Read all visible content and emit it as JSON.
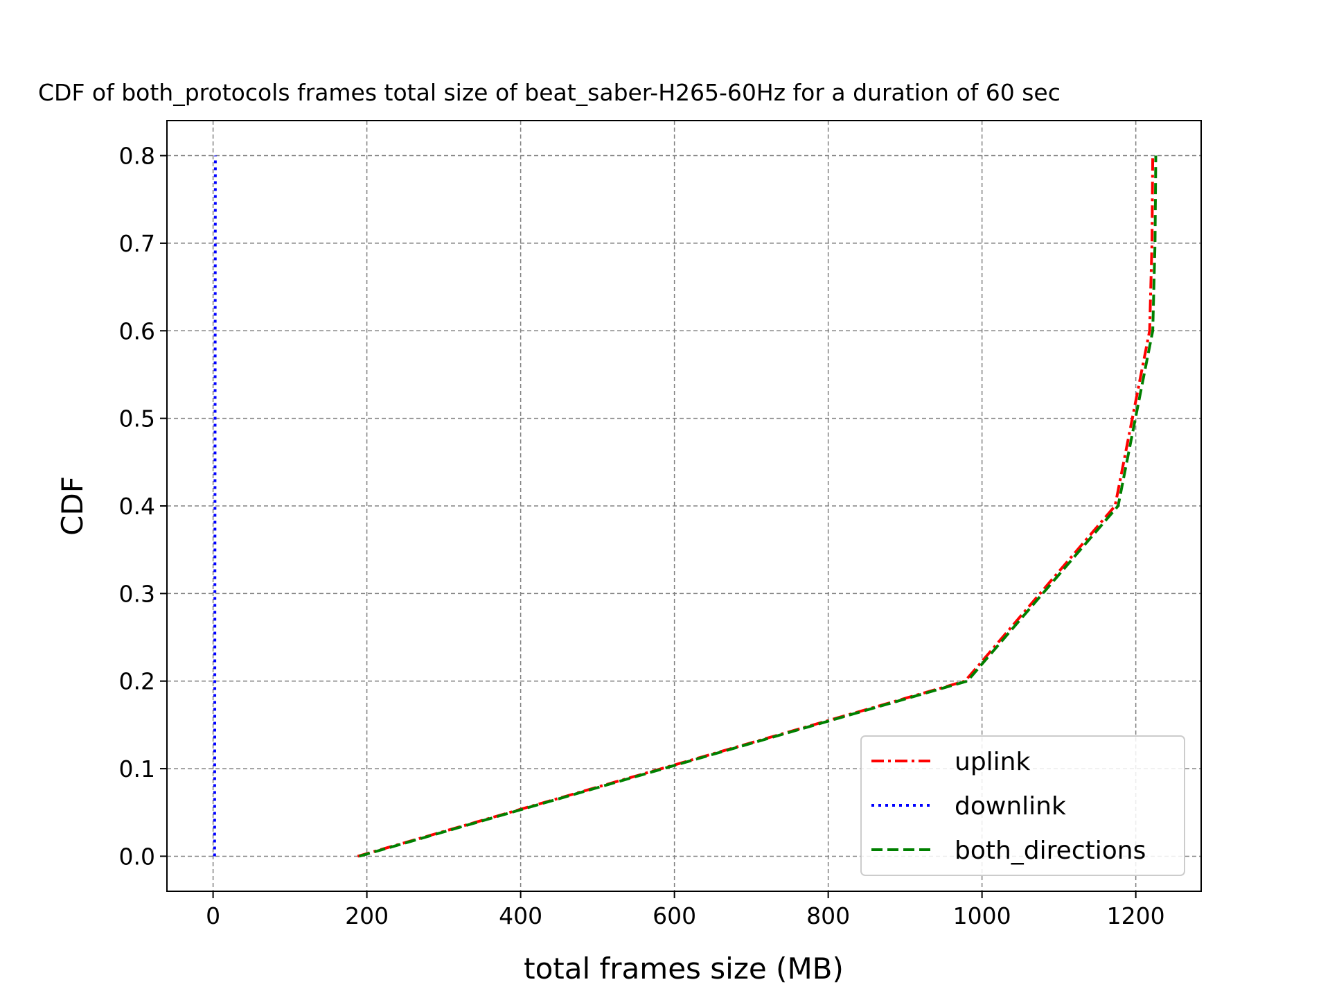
{
  "chart_data": {
    "type": "line",
    "title": "CDF of both_protocols frames total size of beat_saber-H265-60Hz for a duration of 60 sec",
    "xlabel": "total frames size (MB)",
    "ylabel": "CDF",
    "xlim": [
      -60,
      1285
    ],
    "ylim": [
      -0.04,
      0.84
    ],
    "xticks": [
      0,
      200,
      400,
      600,
      800,
      1000,
      1200
    ],
    "yticks": [
      0.0,
      0.1,
      0.2,
      0.3,
      0.4,
      0.5,
      0.6,
      0.7,
      0.8
    ],
    "xtick_labels": [
      "0",
      "200",
      "400",
      "600",
      "800",
      "1000",
      "1200"
    ],
    "ytick_labels": [
      "0.0",
      "0.1",
      "0.2",
      "0.3",
      "0.4",
      "0.5",
      "0.6",
      "0.7",
      "0.8"
    ],
    "grid": true,
    "legend_position": "lower right",
    "series": [
      {
        "name": "uplink",
        "color": "#ff0000",
        "dash": "dash-dot",
        "x": [
          188,
          978,
          1173,
          1218,
          1221,
          1222
        ],
        "y": [
          0.0,
          0.2,
          0.4,
          0.6,
          0.7,
          0.8
        ]
      },
      {
        "name": "downlink",
        "color": "#0000ff",
        "dash": "dotted",
        "x": [
          2,
          3
        ],
        "y": [
          0.0,
          0.8
        ]
      },
      {
        "name": "both_directions",
        "color": "#008000",
        "dash": "dashed",
        "x": [
          190,
          981,
          1177,
          1222,
          1225,
          1226
        ],
        "y": [
          0.0,
          0.2,
          0.4,
          0.6,
          0.7,
          0.8
        ]
      }
    ]
  }
}
